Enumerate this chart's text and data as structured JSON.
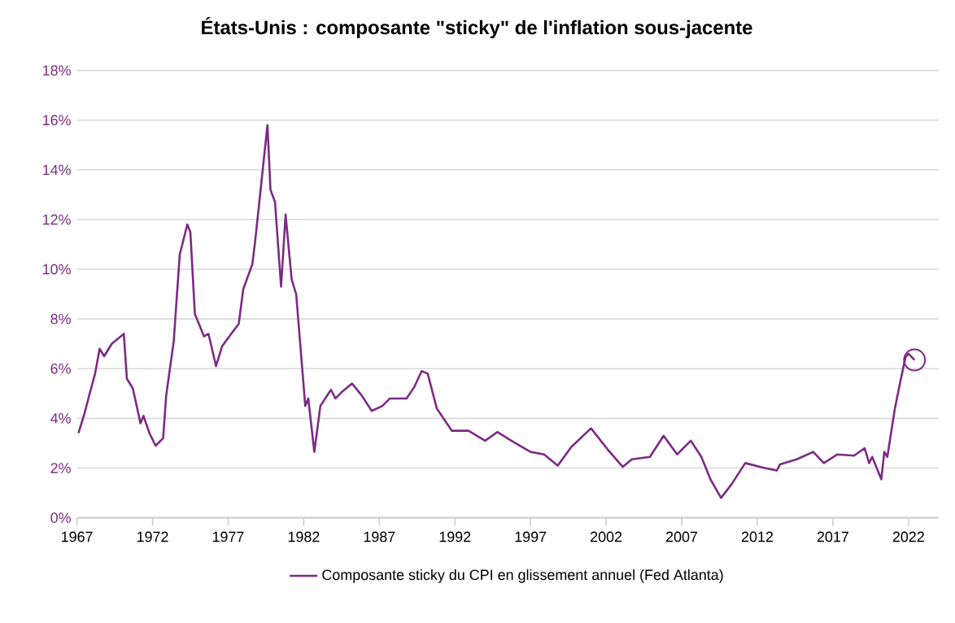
{
  "chart_data": {
    "type": "line",
    "title": "États-Unis : composante \"sticky\" de l'inflation sous-jacente",
    "x": [
      1967.1,
      1967.5,
      1967.8,
      1968.2,
      1968.5,
      1968.8,
      1969.3,
      1970.1,
      1970.3,
      1970.7,
      1971.2,
      1971.4,
      1971.8,
      1972.2,
      1972.7,
      1972.9,
      1973.4,
      1973.8,
      1974.3,
      1974.5,
      1974.8,
      1975.4,
      1975.7,
      1976.2,
      1976.6,
      1977.2,
      1977.7,
      1978.0,
      1978.6,
      1978.8,
      1979.2,
      1979.6,
      1979.8,
      1980.1,
      1980.5,
      1980.8,
      1981.2,
      1981.5,
      1981.9,
      1982.1,
      1982.3,
      1982.7,
      1983.1,
      1983.8,
      1984.1,
      1984.5,
      1985.2,
      1985.8,
      1986.5,
      1987.2,
      1987.7,
      1988.8,
      1989.3,
      1989.8,
      1990.2,
      1990.8,
      1991.3,
      1991.8,
      1992.9,
      1994.0,
      1994.8,
      1996.0,
      1997.0,
      1997.9,
      1998.8,
      1999.7,
      2001.0,
      2002.1,
      2003.1,
      2003.7,
      2004.9,
      2005.8,
      2006.7,
      2007.6,
      2008.3,
      2008.9,
      2009.6,
      2010.3,
      2011.2,
      2012.5,
      2013.3,
      2013.5,
      2014.6,
      2015.7,
      2016.4,
      2017.3,
      2018.4,
      2019.1,
      2019.4,
      2019.6,
      2020.2,
      2020.4,
      2020.6,
      2021.1,
      2021.5,
      2021.8,
      2022.0,
      2022.4
    ],
    "series": [
      {
        "name": "Composante sticky du CPI en glissement annuel (Fed Atlanta)",
        "color": "#7b2b83",
        "values": [
          3.4,
          4.2,
          4.9,
          5.8,
          6.8,
          6.5,
          7.0,
          7.4,
          5.6,
          5.2,
          3.8,
          4.1,
          3.4,
          2.9,
          3.2,
          4.9,
          7.1,
          10.6,
          11.8,
          11.5,
          8.2,
          7.3,
          7.4,
          6.1,
          6.9,
          7.4,
          7.8,
          9.2,
          10.2,
          11.2,
          13.5,
          15.8,
          13.2,
          12.7,
          9.3,
          12.2,
          9.6,
          9.0,
          6.0,
          4.5,
          4.8,
          2.65,
          4.5,
          5.15,
          4.8,
          5.05,
          5.4,
          4.95,
          4.3,
          4.5,
          4.8,
          4.8,
          5.25,
          5.9,
          5.8,
          4.4,
          3.95,
          3.5,
          3.5,
          3.1,
          3.45,
          3.0,
          2.65,
          2.55,
          2.1,
          2.85,
          3.6,
          2.75,
          2.05,
          2.35,
          2.45,
          3.3,
          2.55,
          3.1,
          2.45,
          1.55,
          0.8,
          1.35,
          2.2,
          2.0,
          1.9,
          2.15,
          2.35,
          2.65,
          2.2,
          2.55,
          2.5,
          2.8,
          2.2,
          2.45,
          1.55,
          2.65,
          2.45,
          4.4,
          5.6,
          6.45,
          6.6,
          6.35
        ]
      }
    ],
    "xlim": [
      1967,
      2024
    ],
    "xticks": [
      1967,
      1972,
      1977,
      1982,
      1987,
      1992,
      1997,
      2002,
      2007,
      2012,
      2017,
      2022
    ],
    "ylim": [
      0,
      18
    ],
    "yticks": [
      {
        "value": 0,
        "label": "0%"
      },
      {
        "value": 2,
        "label": "2%"
      },
      {
        "value": 4,
        "label": "4%"
      },
      {
        "value": 6,
        "label": "6%"
      },
      {
        "value": 8,
        "label": "8%"
      },
      {
        "value": 10,
        "label": "10%"
      },
      {
        "value": 12,
        "label": "12%"
      },
      {
        "value": 14,
        "label": "14%"
      },
      {
        "value": 16,
        "label": "16%"
      },
      {
        "value": 18,
        "label": "18%"
      }
    ],
    "grid": "y",
    "legend": "bottom",
    "marker": "none",
    "line_style": "solid"
  }
}
